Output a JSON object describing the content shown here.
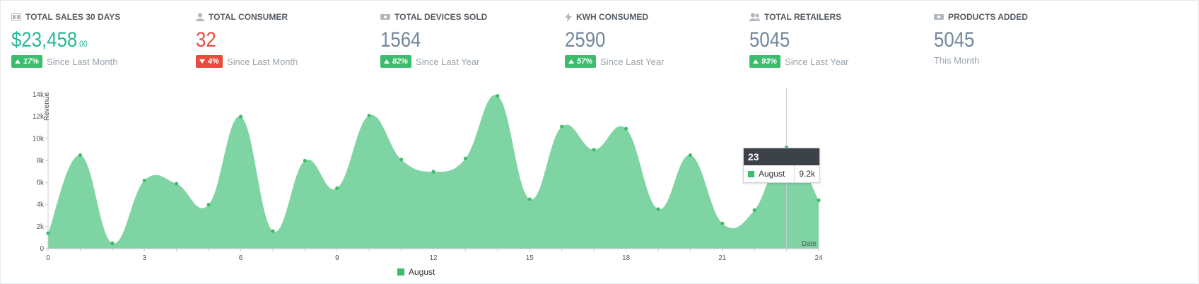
{
  "tiles": [
    {
      "title": "TOTAL SALES 30 DAYS",
      "icon": "money-icon",
      "value": "$23,458",
      "cents": ".00",
      "value_color": "green",
      "badge": "17%",
      "direction": "up",
      "period": "Since Last Month"
    },
    {
      "title": "TOTAL CONSUMER",
      "icon": "user-icon",
      "value": "32",
      "cents": "",
      "value_color": "red",
      "badge": "4%",
      "direction": "down",
      "period": "Since Last Month"
    },
    {
      "title": "TOTAL DEVICES SOLD",
      "icon": "device-icon",
      "value": "1564",
      "cents": "",
      "value_color": "gray",
      "badge": "82%",
      "direction": "up",
      "period": "Since Last Year"
    },
    {
      "title": "KWH CONSUMED",
      "icon": "bolt-icon",
      "value": "2590",
      "cents": "",
      "value_color": "gray",
      "badge": "57%",
      "direction": "up",
      "period": "Since Last Year"
    },
    {
      "title": "TOTAL RETAILERS",
      "icon": "users-icon",
      "value": "5045",
      "cents": "",
      "value_color": "gray",
      "badge": "93%",
      "direction": "up",
      "period": "Since Last Year"
    },
    {
      "title": "PRODUCTS ADDED",
      "icon": "device-icon",
      "value": "5045",
      "cents": "",
      "value_color": "gray",
      "badge": "",
      "direction": "none",
      "period": "This Month"
    }
  ],
  "colors": {
    "area": "#7ed4a3",
    "marker": "#3cbc6d",
    "up": "#3cbc6d",
    "down": "#e74c3c"
  },
  "chart_data": {
    "type": "area",
    "ylabel": "Revenue",
    "xlabel": "Date",
    "xlim": [
      0,
      24
    ],
    "ylim": [
      0,
      14000
    ],
    "x_ticks": [
      0,
      3,
      6,
      9,
      12,
      15,
      18,
      21,
      24
    ],
    "y_ticks": [
      0,
      2000,
      4000,
      6000,
      8000,
      10000,
      12000,
      14000
    ],
    "y_tick_labels": [
      "0",
      "2k",
      "4k",
      "6k",
      "8k",
      "10k",
      "12k",
      "14k"
    ],
    "legend": "bottom",
    "series": [
      {
        "name": "August",
        "x": [
          0,
          1,
          2,
          3,
          4,
          5,
          6,
          7,
          8,
          9,
          10,
          11,
          12,
          13,
          14,
          15,
          16,
          17,
          18,
          19,
          20,
          21,
          22,
          23,
          24
        ],
        "values": [
          1400,
          8500,
          500,
          6200,
          5900,
          4000,
          12000,
          1600,
          8000,
          5500,
          12100,
          8100,
          7000,
          8200,
          13900,
          4500,
          11100,
          9000,
          10900,
          3600,
          8500,
          2300,
          3500,
          9200,
          4400
        ]
      }
    ],
    "tooltip": {
      "x_label": "23",
      "series": "August",
      "value": "9.2k"
    }
  }
}
